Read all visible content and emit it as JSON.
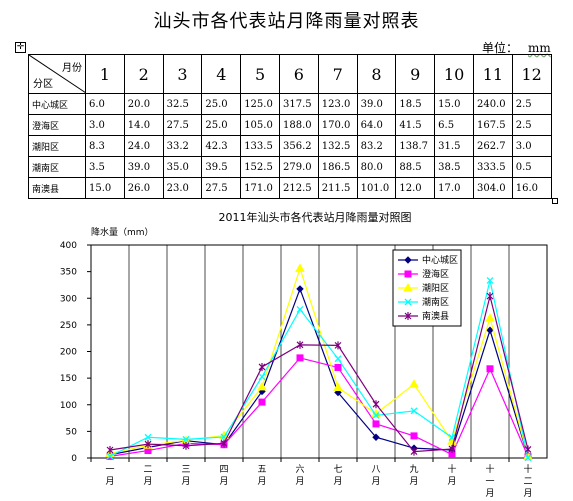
{
  "document": {
    "title": "汕头市各代表站月降雨量对照表",
    "unit_label": "单位：",
    "unit_value": "mm"
  },
  "table": {
    "corner_top": "月份",
    "corner_bottom": "分区",
    "months": [
      "1",
      "2",
      "3",
      "4",
      "5",
      "6",
      "7",
      "8",
      "9",
      "10",
      "11",
      "12"
    ],
    "rows": [
      {
        "station": "中心城区",
        "values": [
          "6.0",
          "20.0",
          "32.5",
          "25.0",
          "125.0",
          "317.5",
          "123.0",
          "39.0",
          "18.5",
          "15.0",
          "240.0",
          "2.5"
        ]
      },
      {
        "station": "澄海区",
        "values": [
          "3.0",
          "14.0",
          "27.5",
          "25.0",
          "105.0",
          "188.0",
          "170.0",
          "64.0",
          "41.5",
          "6.5",
          "167.5",
          "2.5"
        ]
      },
      {
        "station": "潮阳区",
        "values": [
          "8.3",
          "24.0",
          "33.2",
          "42.3",
          "133.5",
          "356.2",
          "132.5",
          "83.2",
          "138.7",
          "31.5",
          "262.7",
          "3.0"
        ]
      },
      {
        "station": "潮南区",
        "values": [
          "3.5",
          "39.0",
          "35.0",
          "39.5",
          "152.5",
          "279.0",
          "186.5",
          "80.0",
          "88.5",
          "38.5",
          "333.5",
          "0.5"
        ]
      },
      {
        "station": "南澳县",
        "values": [
          "15.0",
          "26.0",
          "23.0",
          "27.5",
          "171.0",
          "212.5",
          "211.5",
          "101.0",
          "12.0",
          "17.0",
          "304.0",
          "16.0"
        ]
      }
    ]
  },
  "chart_data": {
    "type": "line",
    "title": "2011年汕头市各代表站月降雨量对照图",
    "ylabel": "降水量（mm）",
    "xlabel": "",
    "ylim": [
      0,
      400
    ],
    "yticks": [
      0,
      50,
      100,
      150,
      200,
      250,
      300,
      350,
      400
    ],
    "categories": [
      "一月",
      "二月",
      "三月",
      "四月",
      "五月",
      "六月",
      "七月",
      "八月",
      "九月",
      "十月",
      "十一月",
      "十二月"
    ],
    "grid": "vertical lines at categories",
    "legend_position": "top-right inside plot",
    "series": [
      {
        "name": "中心城区",
        "color": "#000080",
        "marker": "diamond",
        "values": [
          6.0,
          20.0,
          32.5,
          25.0,
          125.0,
          317.5,
          123.0,
          39.0,
          18.5,
          15.0,
          240.0,
          2.5
        ]
      },
      {
        "name": "澄海区",
        "color": "#ff00ff",
        "marker": "square",
        "values": [
          3.0,
          14.0,
          27.5,
          25.0,
          105.0,
          188.0,
          170.0,
          64.0,
          41.5,
          6.5,
          167.5,
          2.5
        ]
      },
      {
        "name": "潮阳区",
        "color": "#ffff00",
        "marker": "triangle",
        "values": [
          8.3,
          24.0,
          33.2,
          42.3,
          133.5,
          356.2,
          132.5,
          83.2,
          138.7,
          31.5,
          262.7,
          3.0
        ]
      },
      {
        "name": "潮南区",
        "color": "#00ffff",
        "marker": "x",
        "values": [
          3.5,
          39.0,
          35.0,
          39.5,
          152.5,
          279.0,
          186.5,
          80.0,
          88.5,
          38.5,
          333.5,
          0.5
        ]
      },
      {
        "name": "南澳县",
        "color": "#800080",
        "marker": "star",
        "values": [
          15.0,
          26.0,
          23.0,
          27.5,
          171.0,
          212.5,
          211.5,
          101.0,
          12.0,
          17.0,
          304.0,
          16.0
        ]
      }
    ]
  }
}
